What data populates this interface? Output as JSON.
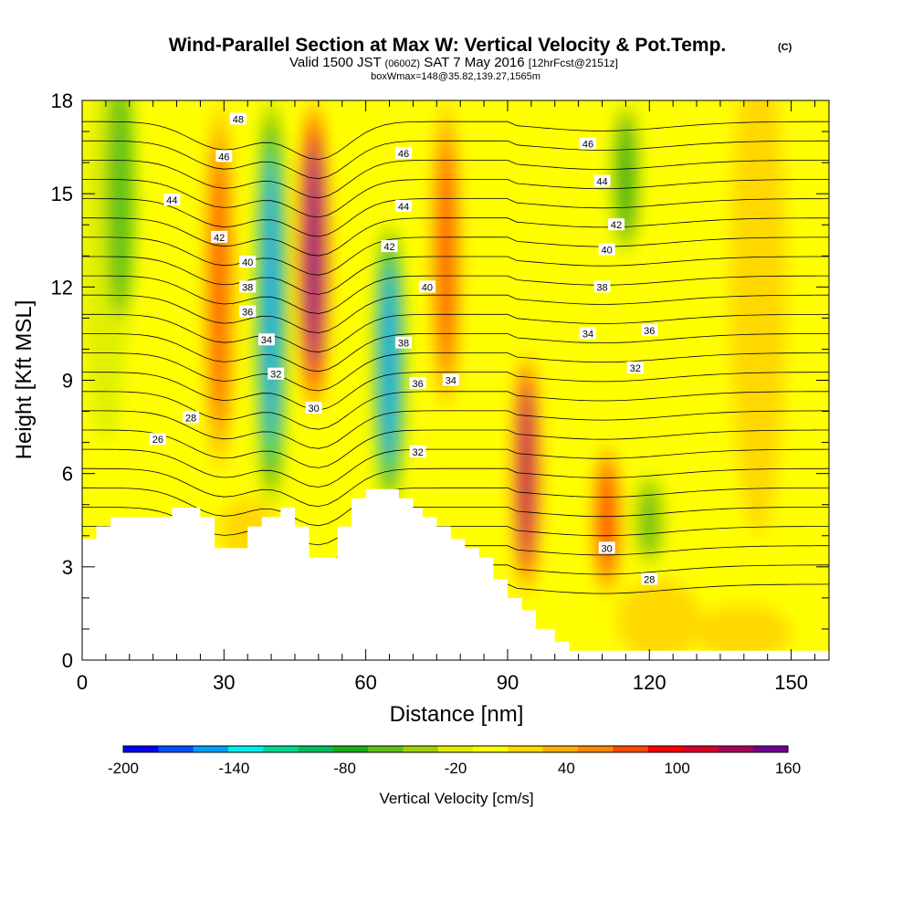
{
  "title": "Wind-Parallel Section at Max W: Vertical Velocity & Pot.Temp.",
  "copyright": "(C)",
  "subtitle_main": "Valid 1500 JST",
  "subtitle_utc": "(0600Z)",
  "subtitle_date": "SAT 7 May 2016",
  "subtitle_fcst": "[12hrFcst@2151z]",
  "subtitle2": "boxWmax=148@35.82,139.27,1565m",
  "chart_data": {
    "type": "heatmap",
    "xlabel": "Distance [nm]",
    "ylabel": "Height [Kft MSL]",
    "xlim": [
      0,
      158
    ],
    "ylim": [
      0,
      18
    ],
    "x_ticks": [
      0,
      30,
      60,
      90,
      120,
      150
    ],
    "y_ticks": [
      0,
      3,
      6,
      9,
      12,
      15,
      18
    ],
    "colorbar": {
      "label": "Vertical Velocity [cm/s]",
      "min": -200,
      "max": 160,
      "step": 20,
      "tick_values": [
        -200,
        -140,
        -80,
        -20,
        40,
        100,
        160
      ],
      "colors": [
        "#0000ff",
        "#0050ff",
        "#00a0ff",
        "#00f0f0",
        "#00d890",
        "#00c060",
        "#18b018",
        "#60c018",
        "#a0d000",
        "#e0f000",
        "#ffff00",
        "#ffd800",
        "#ffb000",
        "#ff8800",
        "#ff4800",
        "#ff0000",
        "#d8002a",
        "#a8005a",
        "#700090"
      ]
    },
    "velocity_features": [
      {
        "kind": "updraft",
        "x": 29,
        "y_range": [
          6,
          18
        ],
        "w_max": 80
      },
      {
        "kind": "downdraft",
        "x": 40,
        "y_range": [
          5,
          18
        ],
        "w_min": -140
      },
      {
        "kind": "updraft",
        "x": 49,
        "y_range": [
          8,
          18
        ],
        "w_max": 160
      },
      {
        "kind": "downdraft",
        "x": 65,
        "y_range": [
          5,
          14
        ],
        "w_min": -140
      },
      {
        "kind": "updraft",
        "x": 77,
        "y_range": [
          8,
          18
        ],
        "w_max": 80
      },
      {
        "kind": "updraft",
        "x": 94,
        "y_range": [
          2,
          10
        ],
        "w_max": 148
      },
      {
        "kind": "updraft",
        "x": 111,
        "y_range": [
          2,
          7
        ],
        "w_max": 100
      },
      {
        "kind": "downdraft",
        "x": 120,
        "y_range": [
          3,
          6
        ],
        "w_min": -40
      },
      {
        "kind": "downdraft",
        "x": 115,
        "y_range": [
          13,
          18
        ],
        "w_min": -60
      }
    ],
    "theta_contour_labels": [
      {
        "value": 48,
        "x": 33,
        "y": 17.4
      },
      {
        "value": 46,
        "x": 30,
        "y": 16.2
      },
      {
        "value": 44,
        "x": 19,
        "y": 14.8
      },
      {
        "value": 42,
        "x": 29,
        "y": 13.6
      },
      {
        "value": 40,
        "x": 35,
        "y": 12.8
      },
      {
        "value": 38,
        "x": 35,
        "y": 12.0
      },
      {
        "value": 36,
        "x": 35,
        "y": 11.2
      },
      {
        "value": 34,
        "x": 39,
        "y": 10.3
      },
      {
        "value": 32,
        "x": 41,
        "y": 9.2
      },
      {
        "value": 30,
        "x": 49,
        "y": 8.1
      },
      {
        "value": 28,
        "x": 23,
        "y": 7.8
      },
      {
        "value": 26,
        "x": 16,
        "y": 7.1
      },
      {
        "value": 46,
        "x": 68,
        "y": 16.3
      },
      {
        "value": 44,
        "x": 68,
        "y": 14.6
      },
      {
        "value": 42,
        "x": 65,
        "y": 13.3
      },
      {
        "value": 40,
        "x": 73,
        "y": 12.0
      },
      {
        "value": 38,
        "x": 68,
        "y": 10.2
      },
      {
        "value": 36,
        "x": 71,
        "y": 8.9
      },
      {
        "value": 34,
        "x": 78,
        "y": 9.0
      },
      {
        "value": 32,
        "x": 71,
        "y": 6.7
      },
      {
        "value": 46,
        "x": 107,
        "y": 16.6
      },
      {
        "value": 44,
        "x": 110,
        "y": 15.4
      },
      {
        "value": 42,
        "x": 113,
        "y": 14.0
      },
      {
        "value": 40,
        "x": 111,
        "y": 13.2
      },
      {
        "value": 38,
        "x": 110,
        "y": 12.0
      },
      {
        "value": 36,
        "x": 120,
        "y": 10.6
      },
      {
        "value": 34,
        "x": 107,
        "y": 10.5
      },
      {
        "value": 32,
        "x": 117,
        "y": 9.4
      },
      {
        "value": 30,
        "x": 111,
        "y": 3.6
      },
      {
        "value": 28,
        "x": 120,
        "y": 2.6
      }
    ],
    "terrain_profile": [
      [
        0,
        3.9
      ],
      [
        3,
        3.9
      ],
      [
        3,
        4.3
      ],
      [
        6,
        4.3
      ],
      [
        6,
        4.6
      ],
      [
        19,
        4.6
      ],
      [
        19,
        4.9
      ],
      [
        25,
        4.9
      ],
      [
        25,
        4.6
      ],
      [
        28,
        4.6
      ],
      [
        28,
        3.6
      ],
      [
        30,
        3.6
      ],
      [
        30,
        3.6
      ],
      [
        35,
        3.6
      ],
      [
        35,
        4.3
      ],
      [
        38,
        4.3
      ],
      [
        38,
        4.6
      ],
      [
        42,
        4.6
      ],
      [
        42,
        4.9
      ],
      [
        45,
        4.9
      ],
      [
        45,
        4.3
      ],
      [
        48,
        4.3
      ],
      [
        48,
        3.3
      ],
      [
        54,
        3.3
      ],
      [
        54,
        4.3
      ],
      [
        57,
        4.3
      ],
      [
        57,
        5.2
      ],
      [
        60,
        5.2
      ],
      [
        60,
        5.5
      ],
      [
        67,
        5.5
      ],
      [
        67,
        5.2
      ],
      [
        70,
        5.2
      ],
      [
        70,
        4.9
      ],
      [
        72,
        4.9
      ],
      [
        72,
        4.6
      ],
      [
        75,
        4.6
      ],
      [
        75,
        4.3
      ],
      [
        78,
        4.3
      ],
      [
        78,
        3.9
      ],
      [
        81,
        3.9
      ],
      [
        81,
        3.6
      ],
      [
        84,
        3.6
      ],
      [
        84,
        3.3
      ],
      [
        87,
        3.3
      ],
      [
        87,
        2.6
      ],
      [
        90,
        2.6
      ],
      [
        90,
        2.0
      ],
      [
        93,
        2.0
      ],
      [
        93,
        1.6
      ],
      [
        96,
        1.6
      ],
      [
        96,
        1.0
      ],
      [
        100,
        1.0
      ],
      [
        100,
        0.6
      ],
      [
        103,
        0.6
      ],
      [
        103,
        0.3
      ],
      [
        158,
        0.3
      ],
      [
        158,
        0
      ],
      [
        0,
        0
      ]
    ]
  }
}
